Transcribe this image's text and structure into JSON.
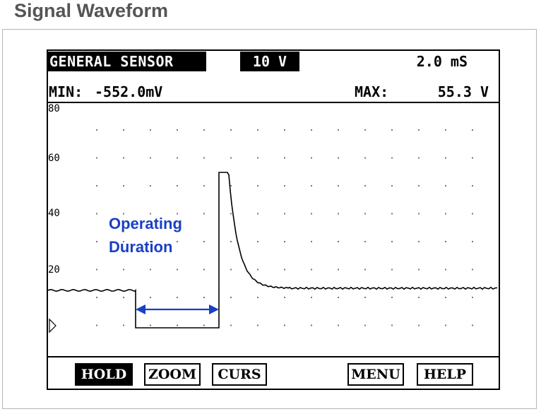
{
  "page": {
    "title": "Signal Waveform"
  },
  "scope": {
    "sensor_name": "GENERAL SENSOR",
    "volt_range": "10 V",
    "time_div": "2.0 mS",
    "min_label": "MIN:",
    "min_value": "-552.0mV",
    "max_label": "MAX:",
    "max_value": "55.3 V",
    "y_axis_labels": [
      "80",
      "60",
      "40",
      "20"
    ],
    "annotation": {
      "line1": "Operating",
      "line2": "Duration"
    },
    "buttons": {
      "hold": "HOLD",
      "zoom": "ZOOM",
      "curs": "CURS",
      "menu": "MENU",
      "help": "HELP"
    },
    "colors": {
      "annotation": "#1a3fc4",
      "trace": "#000000",
      "background": "#ffffff"
    }
  }
}
